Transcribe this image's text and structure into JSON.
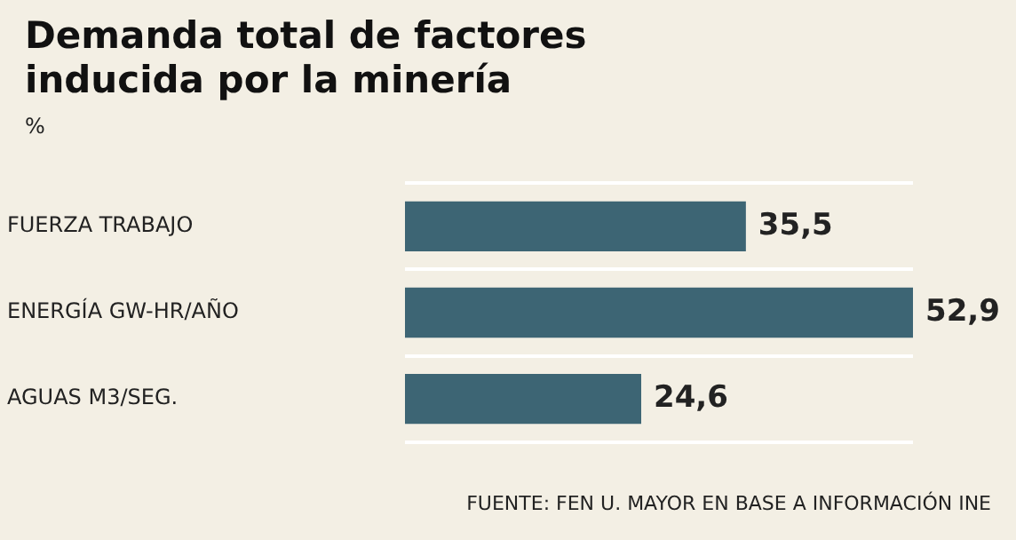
{
  "chart_data": {
    "type": "bar",
    "orientation": "horizontal",
    "title": "Demanda total de factores inducida por la minería",
    "ylabel": "%",
    "categories": [
      "FUERZA TRABAJO",
      "ENERGÍA GW-HR/AÑO",
      "AGUAS M3/SEG."
    ],
    "values": [
      35.5,
      52.9,
      24.6
    ],
    "value_labels": [
      "35,5",
      "52,9",
      "24,6"
    ],
    "color": "#3d6574",
    "grid": "y",
    "legend": false,
    "annotations": [
      "FUENTE: FEN U. MAYOR EN BASE A INFORMACIÓN INE"
    ]
  }
}
